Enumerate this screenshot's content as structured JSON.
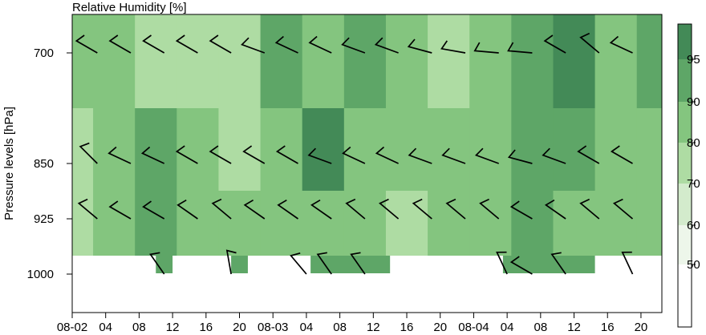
{
  "chart_data": {
    "type": "heatmap",
    "title": "Relative Humidity [%]",
    "xlabel": "",
    "ylabel": "Pressure levels [hPa]",
    "x_tick_labels": [
      "08-02",
      "04",
      "08",
      "12",
      "16",
      "20",
      "08-03",
      "04",
      "08",
      "12",
      "16",
      "20",
      "08-04",
      "04",
      "08",
      "12",
      "16",
      "20"
    ],
    "x_hours": [
      0,
      4,
      8,
      12,
      16,
      20,
      24,
      28,
      32,
      36,
      40,
      44,
      48,
      52,
      56,
      60,
      64,
      68
    ],
    "xlim_hours": [
      0,
      70.5
    ],
    "y_levels": [
      700,
      850,
      925,
      1000
    ],
    "y_tick_labels": [
      "700",
      "850",
      "925",
      "1000"
    ],
    "colorbar": {
      "levels": [
        50,
        60,
        70,
        80,
        90,
        95
      ],
      "tick_labels": [
        "50",
        "60",
        "70",
        "80",
        "90",
        "95"
      ],
      "colors": [
        "#ffffff",
        "#edf6ea",
        "#d3ebcc",
        "#aedca3",
        "#84c57f",
        "#5ea667",
        "#438a57"
      ]
    },
    "rh_bands_hours": [
      0,
      5,
      10,
      15,
      20,
      25,
      30,
      35,
      40,
      45,
      50,
      55,
      60,
      65,
      70
    ],
    "rh_700": [
      80,
      82,
      76,
      70,
      75,
      90,
      85,
      92,
      86,
      78,
      84,
      92,
      95,
      80,
      92
    ],
    "rh_850": [
      78,
      86,
      92,
      80,
      76,
      88,
      96,
      86,
      80,
      84,
      88,
      94,
      90,
      86,
      88
    ],
    "rh_925": [
      74,
      86,
      94,
      82,
      80,
      86,
      88,
      82,
      78,
      86,
      82,
      92,
      88,
      84,
      86
    ],
    "rh_1000_segments": [
      {
        "start": 10,
        "end": 12,
        "value": 92
      },
      {
        "start": 19,
        "end": 21,
        "value": 92
      },
      {
        "start": 28.5,
        "end": 38,
        "value": 90
      },
      {
        "start": 51.5,
        "end": 62.5,
        "value": 93
      }
    ],
    "wind_barbs": {
      "700": [
        {
          "h": 0,
          "dir": 290,
          "spd": 10
        },
        {
          "h": 3,
          "dir": 300,
          "spd": 10
        },
        {
          "h": 7,
          "dir": 300,
          "spd": 10
        },
        {
          "h": 11,
          "dir": 300,
          "spd": 10
        },
        {
          "h": 15,
          "dir": 300,
          "spd": 10
        },
        {
          "h": 19,
          "dir": 300,
          "spd": 10
        },
        {
          "h": 23,
          "dir": 290,
          "spd": 10
        },
        {
          "h": 27,
          "dir": 295,
          "spd": 10
        },
        {
          "h": 31,
          "dir": 295,
          "spd": 10
        },
        {
          "h": 35,
          "dir": 290,
          "spd": 10
        },
        {
          "h": 39,
          "dir": 290,
          "spd": 10
        },
        {
          "h": 43,
          "dir": 285,
          "spd": 10
        },
        {
          "h": 47,
          "dir": 280,
          "spd": 10
        },
        {
          "h": 51,
          "dir": 275,
          "spd": 10
        },
        {
          "h": 55,
          "dir": 275,
          "spd": 10
        },
        {
          "h": 59,
          "dir": 300,
          "spd": 10
        },
        {
          "h": 63,
          "dir": 310,
          "spd": 10
        },
        {
          "h": 67,
          "dir": 295,
          "spd": 10
        }
      ],
      "850": [
        {
          "h": 0,
          "dir": 290,
          "spd": 10
        },
        {
          "h": 3,
          "dir": 315,
          "spd": 10
        },
        {
          "h": 7,
          "dir": 295,
          "spd": 10
        },
        {
          "h": 11,
          "dir": 295,
          "spd": 10
        },
        {
          "h": 15,
          "dir": 300,
          "spd": 10
        },
        {
          "h": 19,
          "dir": 300,
          "spd": 10
        },
        {
          "h": 23,
          "dir": 300,
          "spd": 10
        },
        {
          "h": 27,
          "dir": 300,
          "spd": 10
        },
        {
          "h": 31,
          "dir": 290,
          "spd": 10
        },
        {
          "h": 35,
          "dir": 295,
          "spd": 10
        },
        {
          "h": 39,
          "dir": 295,
          "spd": 10
        },
        {
          "h": 43,
          "dir": 290,
          "spd": 10
        },
        {
          "h": 47,
          "dir": 290,
          "spd": 10
        },
        {
          "h": 51,
          "dir": 290,
          "spd": 10
        },
        {
          "h": 55,
          "dir": 285,
          "spd": 10
        },
        {
          "h": 59,
          "dir": 290,
          "spd": 10
        },
        {
          "h": 63,
          "dir": 300,
          "spd": 10
        },
        {
          "h": 67,
          "dir": 300,
          "spd": 10
        }
      ],
      "925": [
        {
          "h": 0,
          "dir": 305,
          "spd": 10
        },
        {
          "h": 3,
          "dir": 310,
          "spd": 10
        },
        {
          "h": 7,
          "dir": 300,
          "spd": 10
        },
        {
          "h": 11,
          "dir": 300,
          "spd": 10
        },
        {
          "h": 15,
          "dir": 305,
          "spd": 10
        },
        {
          "h": 19,
          "dir": 310,
          "spd": 10
        },
        {
          "h": 23,
          "dir": 305,
          "spd": 10
        },
        {
          "h": 27,
          "dir": 305,
          "spd": 10
        },
        {
          "h": 31,
          "dir": 305,
          "spd": 10
        },
        {
          "h": 35,
          "dir": 310,
          "spd": 10
        },
        {
          "h": 39,
          "dir": 310,
          "spd": 10
        },
        {
          "h": 43,
          "dir": 310,
          "spd": 10
        },
        {
          "h": 47,
          "dir": 310,
          "spd": 10
        },
        {
          "h": 51,
          "dir": 310,
          "spd": 10
        },
        {
          "h": 55,
          "dir": 300,
          "spd": 10
        },
        {
          "h": 59,
          "dir": 305,
          "spd": 10
        },
        {
          "h": 63,
          "dir": 310,
          "spd": 10
        },
        {
          "h": 67,
          "dir": 310,
          "spd": 10
        }
      ],
      "1000": [
        {
          "h": 11,
          "dir": 325,
          "spd": 10
        },
        {
          "h": 19,
          "dir": 350,
          "spd": 10
        },
        {
          "h": 28,
          "dir": 320,
          "spd": 10
        },
        {
          "h": 31,
          "dir": 325,
          "spd": 10
        },
        {
          "h": 35,
          "dir": 325,
          "spd": 10
        },
        {
          "h": 52,
          "dir": 335,
          "spd": 10
        },
        {
          "h": 55,
          "dir": 300,
          "spd": 10
        },
        {
          "h": 59,
          "dir": 325,
          "spd": 10
        },
        {
          "h": 67,
          "dir": 335,
          "spd": 10
        }
      ]
    }
  }
}
